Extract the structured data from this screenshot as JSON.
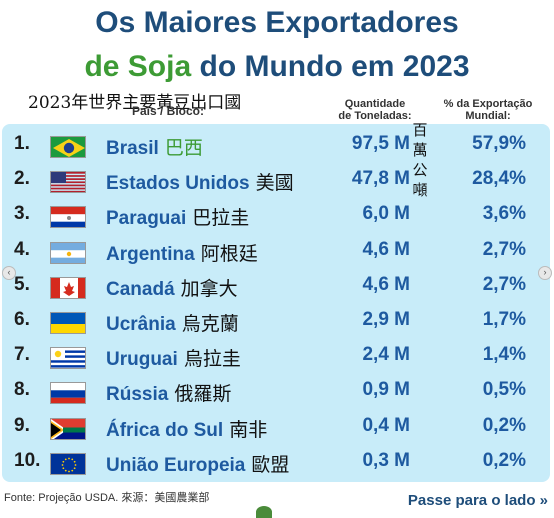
{
  "title_line1": "Os Maiores Exportadores",
  "title_line2_part1": "de Soja",
  "title_line2_part2": " do Mundo em 2023",
  "subtitle_zh": "2023年世界主要黃豆出口國",
  "headers": {
    "country": "País / Bloco:",
    "qty_line1": "Quantidade",
    "qty_line2": "de Toneladas:",
    "pct_line1": "% da Exportação",
    "pct_line2": "Mundial:"
  },
  "unit_zh": "百萬公噸",
  "source": "Fonte: Projeção USDA. 來源：美國農業部",
  "next_label": "Passe para o lado",
  "next_icon": "double-chevron-right-icon",
  "rows": [
    {
      "rank": "1.",
      "name": "Brasil",
      "zh": "巴西",
      "qty": "97,5 M",
      "pct": "57,9%",
      "flag": "brazil-flag"
    },
    {
      "rank": "2.",
      "name": "Estados Unidos",
      "zh": "美國",
      "qty": "47,8 M",
      "pct": "28,4%",
      "flag": "usa-flag"
    },
    {
      "rank": "3.",
      "name": "Paraguai",
      "zh": "巴拉圭",
      "qty": "6,0 M",
      "pct": "3,6%",
      "flag": "paraguay-flag"
    },
    {
      "rank": "4.",
      "name": "Argentina",
      "zh": "阿根廷",
      "qty": "4,6 M",
      "pct": "2,7%",
      "flag": "argentina-flag"
    },
    {
      "rank": "5.",
      "name": "Canadá",
      "zh": "加拿大",
      "qty": "4,6 M",
      "pct": "2,7%",
      "flag": "canada-flag"
    },
    {
      "rank": "6.",
      "name": "Ucrânia",
      "zh": "烏克蘭",
      "qty": "2,9 M",
      "pct": "1,7%",
      "flag": "ukraine-flag"
    },
    {
      "rank": "7.",
      "name": "Uruguai",
      "zh": "烏拉圭",
      "qty": "2,4 M",
      "pct": "1,4%",
      "flag": "uruguay-flag"
    },
    {
      "rank": "8.",
      "name": "Rússia",
      "zh": "俄羅斯",
      "qty": "0,9 M",
      "pct": "0,5%",
      "flag": "russia-flag"
    },
    {
      "rank": "9.",
      "name": "África do Sul",
      "zh": "南非",
      "qty": "0,4 M",
      "pct": "0,2%",
      "flag": "south-africa-flag"
    },
    {
      "rank": "10.",
      "name": "União Europeia",
      "zh": "歐盟",
      "qty": "0,3 M",
      "pct": "0,2%",
      "flag": "eu-flag"
    }
  ],
  "chart_data": {
    "type": "table",
    "title": "Os Maiores Exportadores de Soja do Mundo em 2023",
    "columns": [
      "País / Bloco:",
      "Quantidade de Toneladas:",
      "% da Exportação Mundial:"
    ],
    "categories": [
      "Brasil",
      "Estados Unidos",
      "Paraguai",
      "Argentina",
      "Canadá",
      "Ucrânia",
      "Uruguai",
      "Rússia",
      "África do Sul",
      "União Europeia"
    ],
    "series": [
      {
        "name": "Quantidade de Toneladas:",
        "values": [
          97.5,
          47.8,
          6.0,
          4.6,
          4.6,
          2.9,
          2.4,
          0.9,
          0.4,
          0.3
        ]
      },
      {
        "name": "% da Exportação Mundial:",
        "values": [
          57.9,
          28.4,
          3.6,
          2.7,
          2.7,
          1.7,
          1.4,
          0.5,
          0.2,
          0.2
        ]
      }
    ]
  },
  "colors": {
    "title_blue": "#1e4d7a",
    "title_green": "#3d9b35",
    "row_text_blue": "#1e5aa0",
    "table_bg": "#c8ecf9"
  }
}
